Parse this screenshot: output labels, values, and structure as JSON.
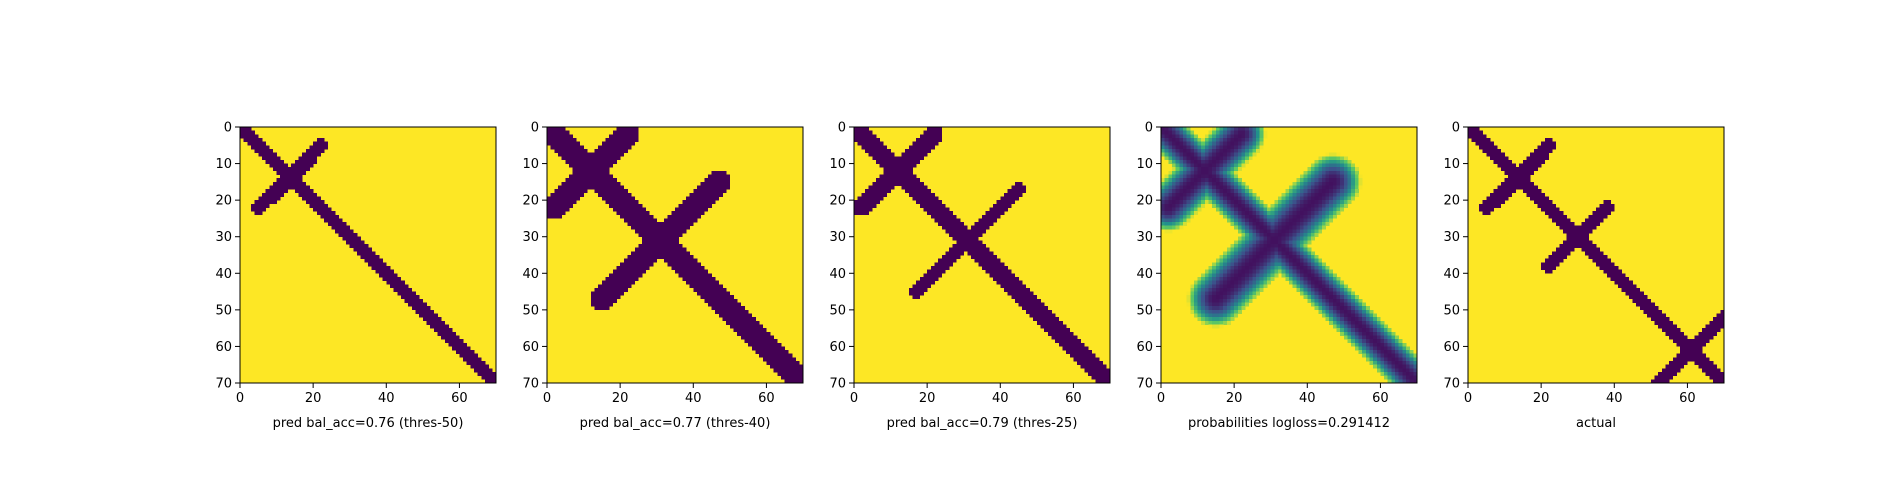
{
  "chart_data": [
    {
      "type": "heatmap",
      "title": "",
      "xlabel": "pred bal_acc=0.76 (thres-50)",
      "ylabel": "",
      "xlim": [
        0,
        70
      ],
      "ylim": [
        70,
        0
      ],
      "xticks": [
        "0",
        "20",
        "40",
        "60"
      ],
      "yticks": [
        "0",
        "10",
        "20",
        "30",
        "40",
        "50",
        "60",
        "70"
      ],
      "colormap": "viridis-binary",
      "colors": {
        "low": "#440154",
        "high": "#fde725"
      },
      "contact_bands": [
        {
          "label": "main diagonal",
          "from": [
            0,
            0
          ],
          "to": [
            70,
            70
          ],
          "width": 2
        },
        {
          "label": "antidiagonal",
          "from": [
            5,
            22
          ],
          "to": [
            18,
            10
          ],
          "width": 2
        }
      ]
    },
    {
      "type": "heatmap",
      "title": "",
      "xlabel": "pred bal_acc=0.77 (thres-40)",
      "ylabel": "",
      "xlim": [
        0,
        70
      ],
      "ylim": [
        70,
        0
      ],
      "xticks": [
        "0",
        "20",
        "40",
        "60"
      ],
      "yticks": [
        "0",
        "10",
        "20",
        "30",
        "40",
        "50",
        "60",
        "70"
      ],
      "colormap": "viridis-binary",
      "colors": {
        "low": "#440154",
        "high": "#fde725"
      },
      "contact_bands": [
        {
          "label": "main diagonal",
          "from": [
            0,
            0
          ],
          "to": [
            70,
            70
          ],
          "width": 3
        },
        {
          "label": "antidiagonal",
          "from": [
            2,
            22
          ],
          "to": [
            22,
            2
          ],
          "width": 3
        },
        {
          "label": "antidiagonal",
          "from": [
            15,
            47
          ],
          "to": [
            47,
            15
          ],
          "width": 3
        }
      ]
    },
    {
      "type": "heatmap",
      "title": "",
      "xlabel": "pred bal_acc=0.79 (thres-25)",
      "ylabel": "",
      "xlim": [
        0,
        70
      ],
      "ylim": [
        70,
        0
      ],
      "xticks": [
        "0",
        "20",
        "40",
        "60"
      ],
      "yticks": [
        "0",
        "10",
        "20",
        "30",
        "40",
        "50",
        "60",
        "70"
      ],
      "colormap": "viridis-binary",
      "colors": {
        "low": "#440154",
        "high": "#fde725"
      },
      "contact_bands": [
        {
          "label": "main diagonal",
          "from": [
            0,
            0
          ],
          "to": [
            70,
            70
          ],
          "width": 2.5
        },
        {
          "label": "antidiagonal",
          "from": [
            2,
            22
          ],
          "to": [
            22,
            2
          ],
          "width": 2.5
        },
        {
          "label": "antidiagonal",
          "from": [
            17,
            45
          ],
          "to": [
            45,
            17
          ],
          "width": 2
        }
      ]
    },
    {
      "type": "heatmap",
      "title": "",
      "xlabel": "probabilities logloss=0.291412",
      "ylabel": "",
      "xlim": [
        0,
        70
      ],
      "ylim": [
        70,
        0
      ],
      "xticks": [
        "0",
        "20",
        "40",
        "60"
      ],
      "yticks": [
        "0",
        "10",
        "20",
        "30",
        "40",
        "50",
        "60",
        "70"
      ],
      "colormap": "viridis",
      "colors": {
        "low": "#440154",
        "high": "#fde725"
      },
      "contact_bands": [
        {
          "label": "main diagonal",
          "from": [
            0,
            0
          ],
          "to": [
            70,
            70
          ],
          "width": 2.5
        },
        {
          "label": "antidiagonal",
          "from": [
            2,
            22
          ],
          "to": [
            22,
            2
          ],
          "width": 3
        },
        {
          "label": "antidiagonal",
          "from": [
            15,
            47
          ],
          "to": [
            47,
            15
          ],
          "width": 3.5
        }
      ]
    },
    {
      "type": "heatmap",
      "title": "",
      "xlabel": "actual",
      "ylabel": "",
      "xlim": [
        0,
        70
      ],
      "ylim": [
        70,
        0
      ],
      "xticks": [
        "0",
        "20",
        "40",
        "60"
      ],
      "yticks": [
        "0",
        "10",
        "20",
        "30",
        "40",
        "50",
        "60",
        "70"
      ],
      "colormap": "viridis-binary",
      "colors": {
        "low": "#440154",
        "high": "#fde725"
      },
      "contact_bands": [
        {
          "label": "main diagonal",
          "from": [
            0,
            0
          ],
          "to": [
            70,
            70
          ],
          "width": 2
        },
        {
          "label": "antidiagonal",
          "from": [
            5,
            22
          ],
          "to": [
            20,
            8
          ],
          "width": 2
        },
        {
          "label": "antidiagonal",
          "from": [
            22,
            38
          ],
          "to": [
            38,
            22
          ],
          "width": 2
        },
        {
          "label": "antidiagonal",
          "from": [
            52,
            70
          ],
          "to": [
            70,
            52
          ],
          "width": 2
        }
      ]
    }
  ]
}
